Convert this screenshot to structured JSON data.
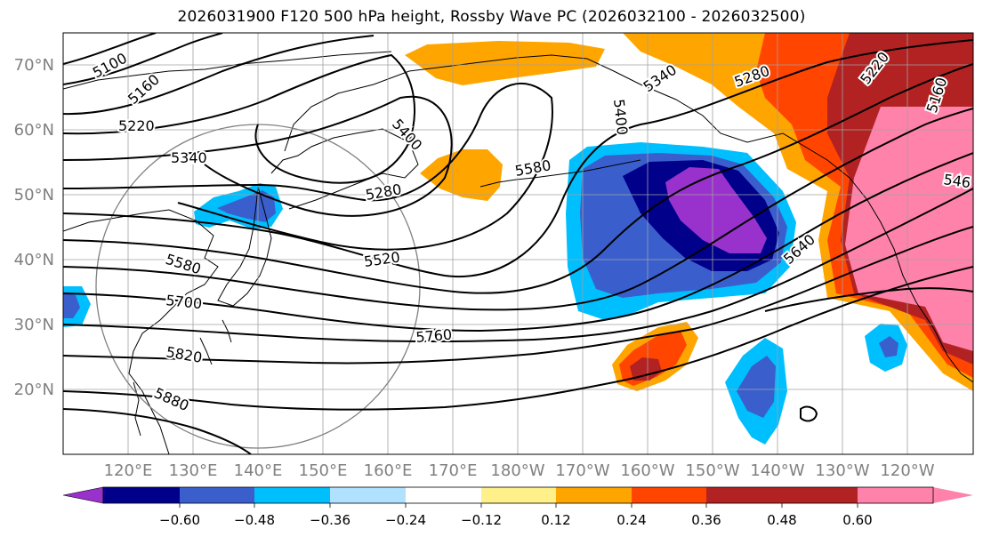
{
  "title": "2026031900 F120 500 hPa height, Rossby Wave PC (2026032100 - 2026032500)",
  "lat_labels": [
    "70°N",
    "60°N",
    "50°N",
    "40°N",
    "30°N",
    "20°N"
  ],
  "lon_labels": [
    "120°E",
    "130°E",
    "140°E",
    "150°E",
    "160°E",
    "170°E",
    "180°W",
    "170°W",
    "160°W",
    "150°W",
    "140°W",
    "130°W",
    "120°W"
  ],
  "contour_labels": [
    "5100",
    "5160",
    "5220",
    "5340",
    "5400",
    "5280",
    "5580",
    "5520",
    "5580",
    "5700",
    "5760",
    "5820",
    "5880",
    "5340",
    "5280",
    "5400",
    "5640",
    "5220",
    "5160",
    "546"
  ],
  "colorbar": {
    "ticks": [
      "−0.60",
      "−0.48",
      "−0.36",
      "−0.24",
      "−0.12",
      "0.12",
      "0.24",
      "0.36",
      "0.48",
      "0.60"
    ],
    "colors": [
      "#9932cc",
      "#00008b",
      "#3a5fcd",
      "#00bfff",
      "#b0e2ff",
      "#ffffff",
      "#fff08a",
      "#ffa500",
      "#ff4500",
      "#b22222",
      "#ff82ab"
    ]
  },
  "colors": {
    "purple": "#9932cc",
    "navy": "#00008b",
    "blue": "#3a5fcd",
    "cyan": "#00bfff",
    "light_cyan": "#b0e2ff",
    "orange": "#ffa500",
    "red_orange": "#ff4500",
    "dark_red": "#b22222",
    "pink": "#ff82ab"
  }
}
